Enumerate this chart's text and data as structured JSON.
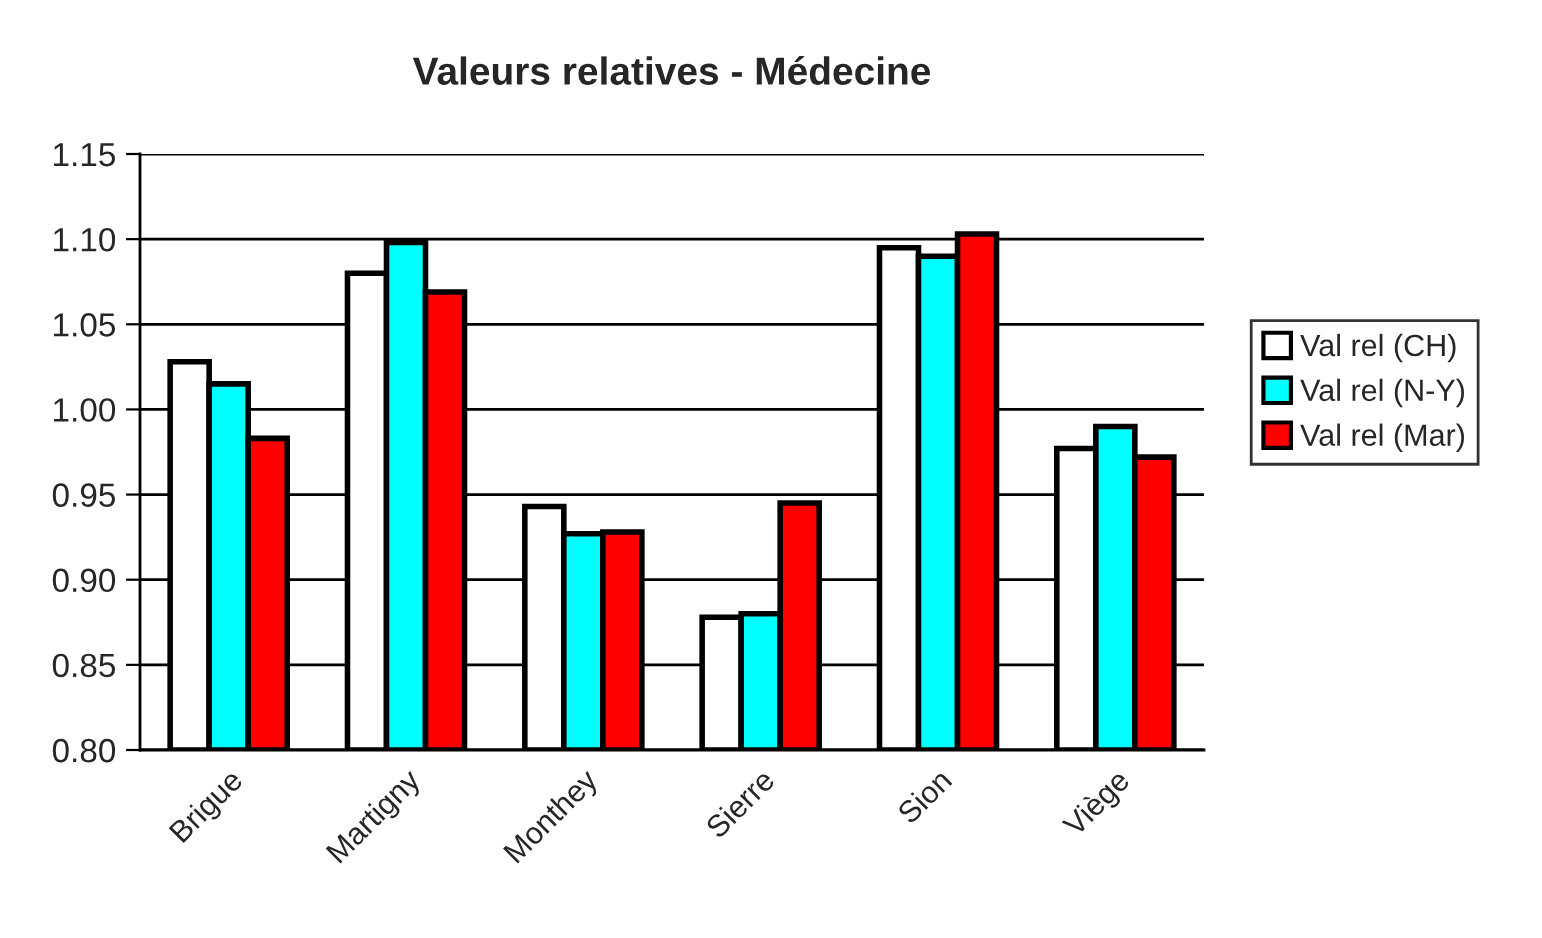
{
  "chart_data": {
    "type": "bar",
    "title": "Valeurs relatives - Médecine",
    "categories": [
      "Brigue",
      "Martigny",
      "Monthey",
      "Sierre",
      "Sion",
      "Viège"
    ],
    "series": [
      {
        "name": "Val rel (CH)",
        "color": "#ffffff",
        "values": [
          1.028,
          1.08,
          0.943,
          0.878,
          1.095,
          0.977
        ]
      },
      {
        "name": "Val rel (N-Y)",
        "color": "#00ffff",
        "values": [
          1.015,
          1.098,
          0.927,
          0.88,
          1.09,
          0.99
        ]
      },
      {
        "name": "Val rel (Mar)",
        "color": "#ff0000",
        "values": [
          0.983,
          1.069,
          0.928,
          0.945,
          1.103,
          0.972
        ]
      }
    ],
    "ylim": [
      0.8,
      1.15
    ],
    "yticks": [
      {
        "value": 0.8,
        "label": "0.80"
      },
      {
        "value": 0.85,
        "label": "0.85"
      },
      {
        "value": 0.9,
        "label": "0.90"
      },
      {
        "value": 0.95,
        "label": "0.95"
      },
      {
        "value": 1.0,
        "label": "1.00"
      },
      {
        "value": 1.05,
        "label": "1.05"
      },
      {
        "value": 1.1,
        "label": "1.10"
      },
      {
        "value": 1.15,
        "label": "1.15"
      }
    ],
    "grid": "y",
    "legend": "right"
  }
}
